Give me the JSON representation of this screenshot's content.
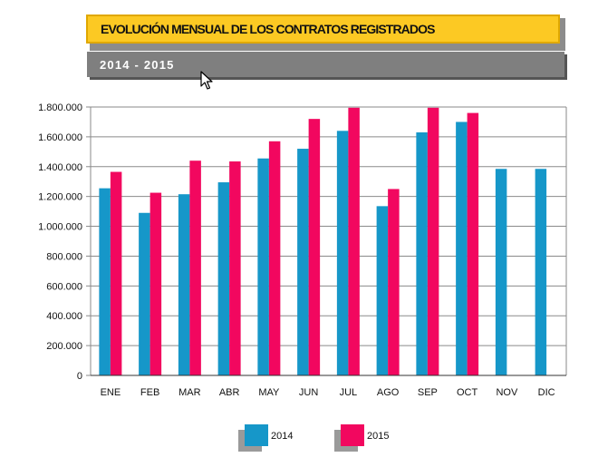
{
  "header": {
    "title": "EVOLUCIÓN MENSUAL DE LOS CONTRATOS REGISTRADOS",
    "subtitle": "2014 - 2015"
  },
  "colors": {
    "series_2014": "#1697c9",
    "series_2015": "#f2075f",
    "title_bg": "#fcc923",
    "subtitle_bg": "#7f7f7f"
  },
  "chart_data": {
    "type": "bar",
    "categories": [
      "ENE",
      "FEB",
      "MAR",
      "ABR",
      "MAY",
      "JUN",
      "JUL",
      "AGO",
      "SEP",
      "OCT",
      "NOV",
      "DIC"
    ],
    "series": [
      {
        "name": "2014",
        "values": [
          1255000,
          1090000,
          1215000,
          1295000,
          1455000,
          1520000,
          1640000,
          1135000,
          1630000,
          1700000,
          1385000,
          1385000
        ]
      },
      {
        "name": "2015",
        "values": [
          1365000,
          1225000,
          1440000,
          1435000,
          1570000,
          1720000,
          1795000,
          1250000,
          1795000,
          1760000,
          null,
          null
        ]
      }
    ],
    "yticks": [
      "0",
      "200.000",
      "400.000",
      "600.000",
      "800.000",
      "1.000.000",
      "1.200.000",
      "1.400.000",
      "1.600.000",
      "1.800.000"
    ],
    "ylim": [
      0,
      1800000
    ],
    "grid": true,
    "legend_position": "bottom"
  }
}
